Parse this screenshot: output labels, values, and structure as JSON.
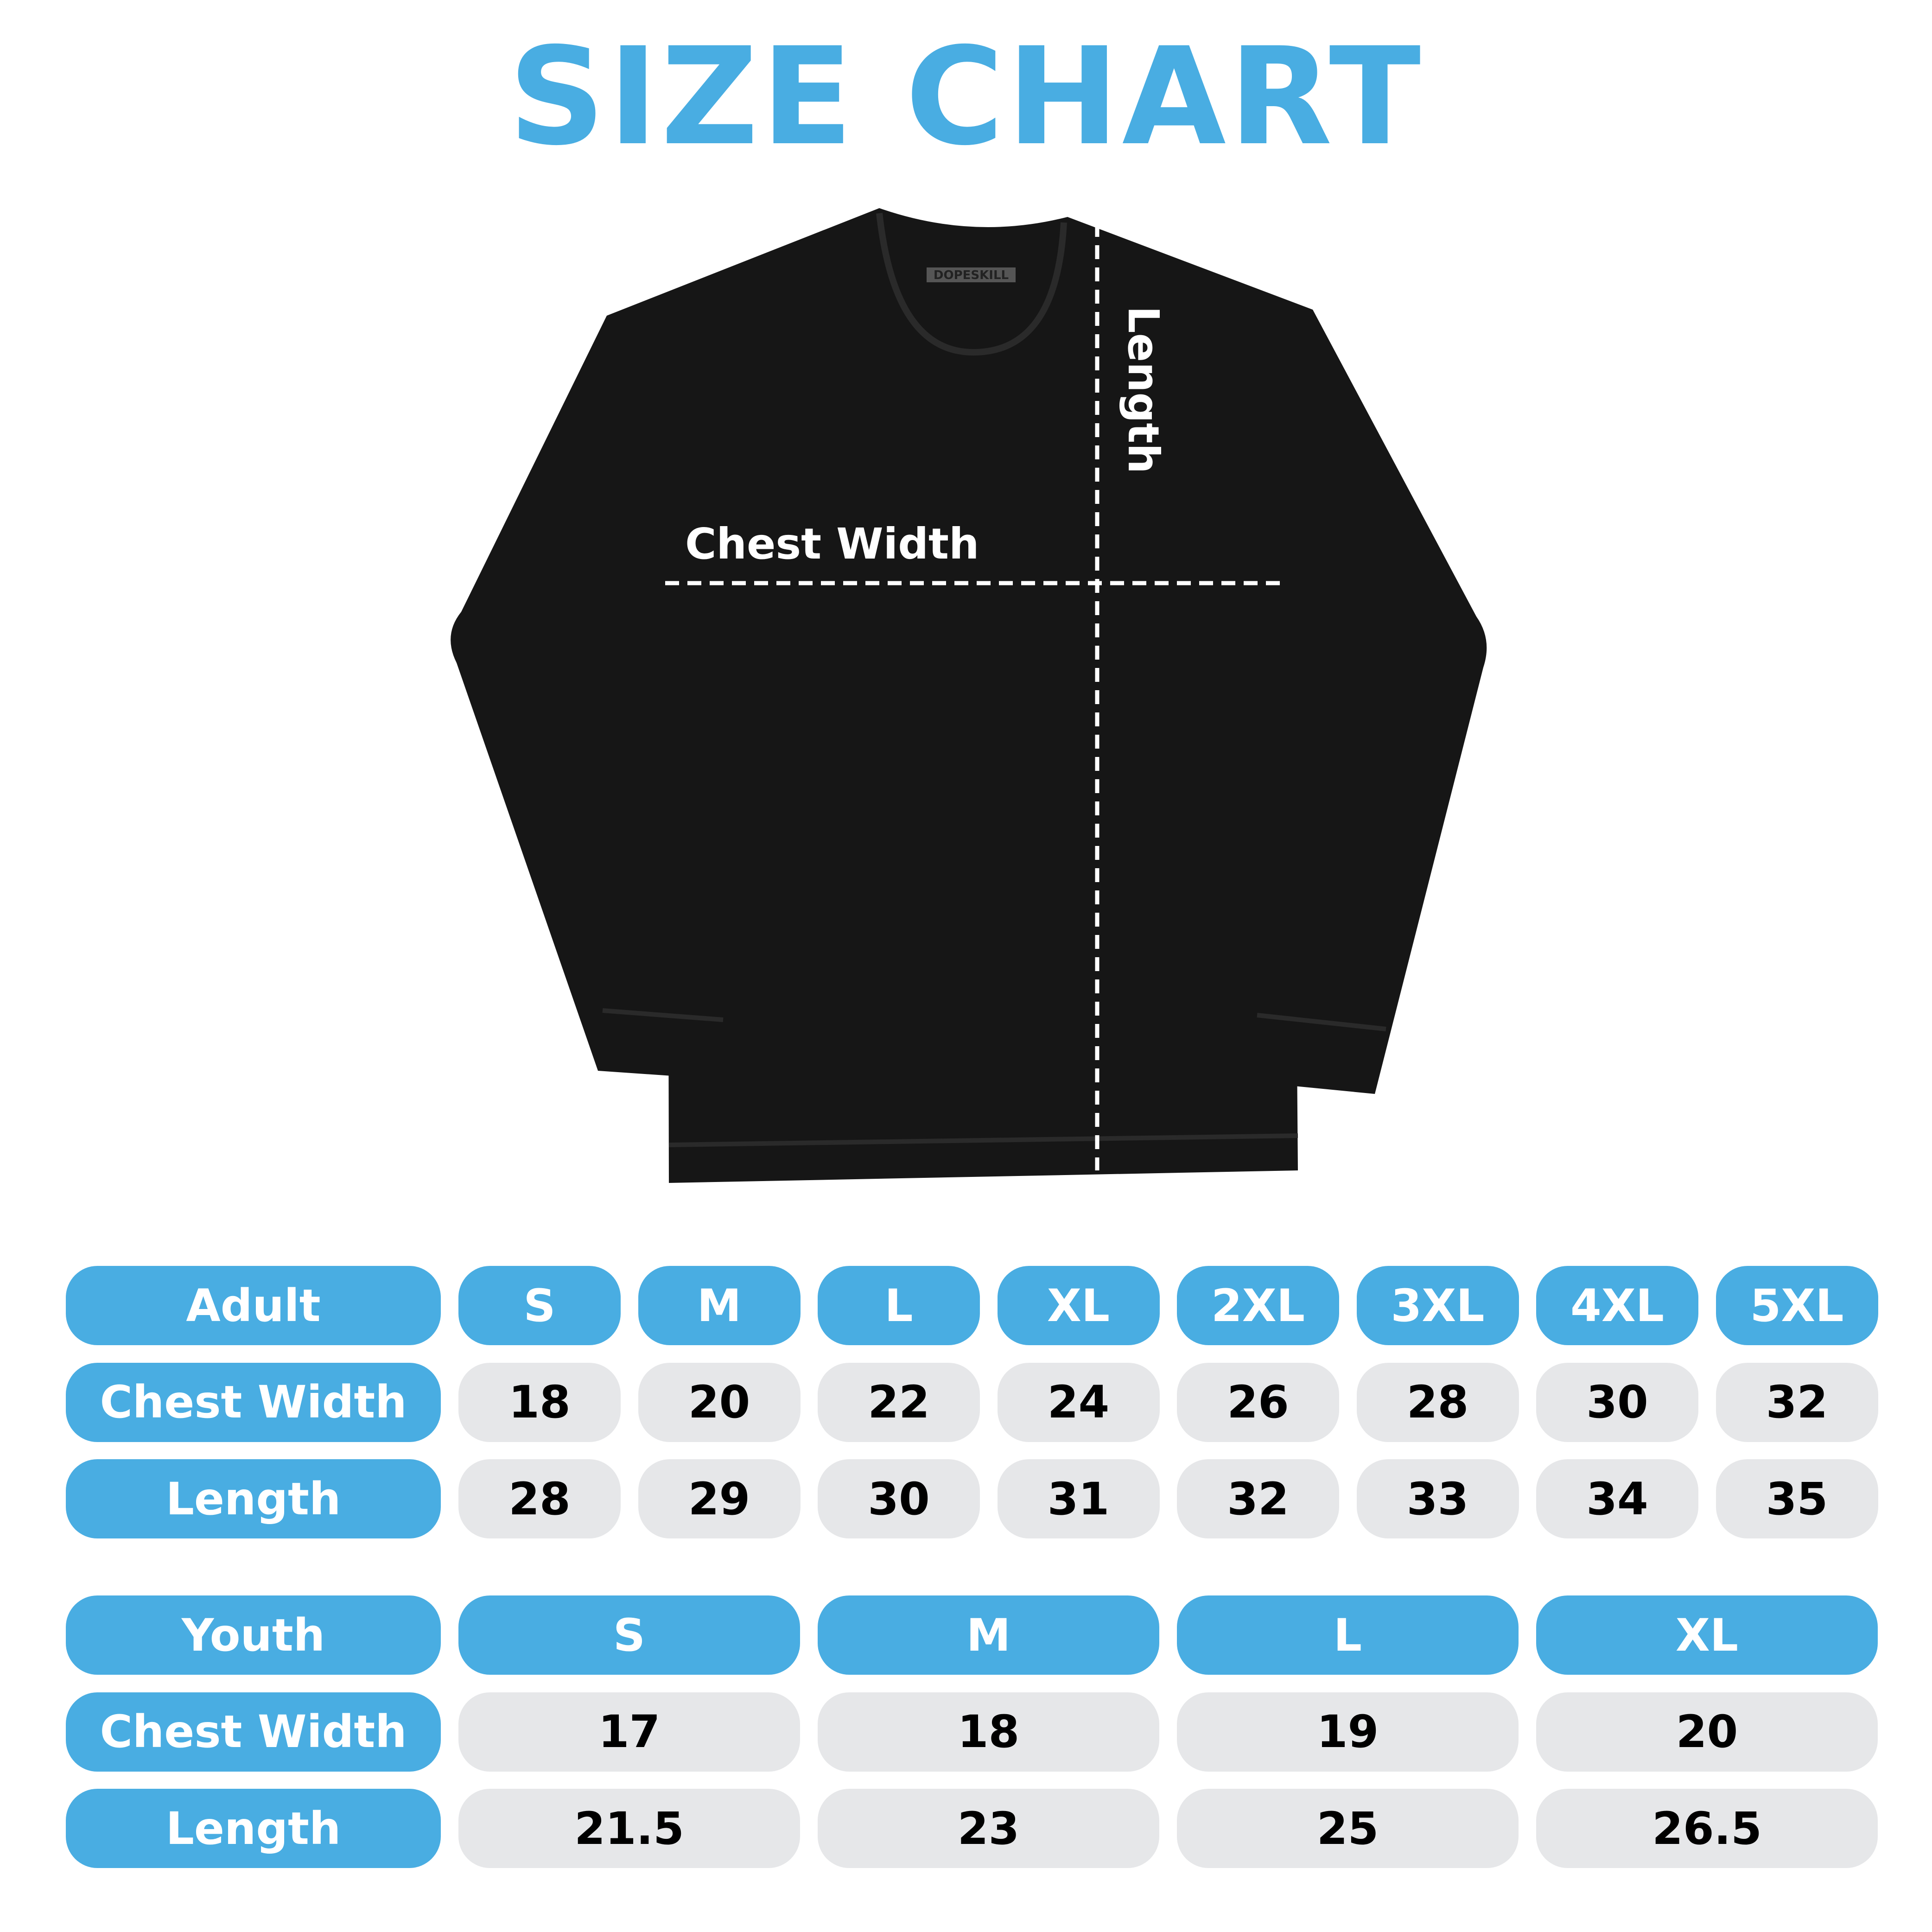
{
  "title": "SIZE CHART",
  "colors": {
    "accent": "#49ADE2",
    "cell_bg": "#E6E7E9",
    "shirt": "#161616"
  },
  "shirt": {
    "brand_tag": "DOPESKILL",
    "chest_label": "Chest Width",
    "length_label": "Length"
  },
  "adult": {
    "header": "Adult",
    "sizes": [
      "S",
      "M",
      "L",
      "XL",
      "2XL",
      "3XL",
      "4XL",
      "5XL"
    ],
    "rows": [
      {
        "label": "Chest Width",
        "values": [
          "18",
          "20",
          "22",
          "24",
          "26",
          "28",
          "30",
          "32"
        ]
      },
      {
        "label": "Length",
        "values": [
          "28",
          "29",
          "30",
          "31",
          "32",
          "33",
          "34",
          "35"
        ]
      }
    ]
  },
  "youth": {
    "header": "Youth",
    "sizes": [
      "S",
      "M",
      "L",
      "XL"
    ],
    "rows": [
      {
        "label": "Chest Width",
        "values": [
          "17",
          "18",
          "19",
          "20"
        ]
      },
      {
        "label": "Length",
        "values": [
          "21.5",
          "23",
          "25",
          "26.5"
        ]
      }
    ]
  }
}
